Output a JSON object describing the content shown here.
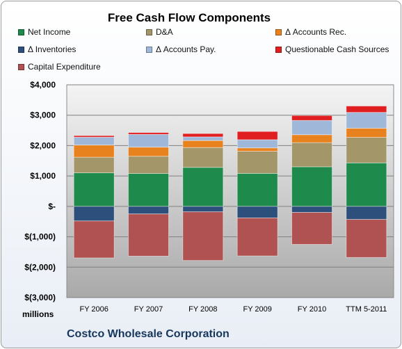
{
  "chart_data": {
    "type": "bar",
    "stacked": true,
    "title": "Free Cash Flow Components",
    "subtitle": "",
    "units_label": "millions",
    "footer": "Costco Wholesale Corporation",
    "categories": [
      "FY 2006",
      "FY 2007",
      "FY 2008",
      "FY 2009",
      "FY 2010",
      "TTM 5-2011"
    ],
    "ylim": [
      -3000,
      4000
    ],
    "y_ticks": [
      {
        "value": 4000,
        "label": "$4,000"
      },
      {
        "value": 3000,
        "label": "$3,000"
      },
      {
        "value": 2000,
        "label": "$2,000"
      },
      {
        "value": 1000,
        "label": "$1,000"
      },
      {
        "value": 0,
        "label": "$-"
      },
      {
        "value": -1000,
        "label": "$(1,000)"
      },
      {
        "value": -2000,
        "label": "$(2,000)"
      },
      {
        "value": -3000,
        "label": "$(3,000)"
      }
    ],
    "grid": true,
    "legend_position": "top",
    "series": [
      {
        "name": "Net Income",
        "color": "#1e8a4c",
        "values": [
          1103,
          1083,
          1283,
          1086,
          1303,
          1432
        ]
      },
      {
        "name": "D&A",
        "color": "#a39668",
        "values": [
          515,
          566,
          653,
          728,
          795,
          840
        ]
      },
      {
        "name": "Δ Accounts Rec.",
        "color": "#e8821e",
        "values": [
          400,
          300,
          230,
          110,
          260,
          300
        ]
      },
      {
        "name": "Δ Inventories",
        "color": "#2d4f7c",
        "values": [
          -480,
          -250,
          -180,
          -380,
          -200,
          -430
        ]
      },
      {
        "name": "Δ Accounts Pay.",
        "color": "#9fb8da",
        "values": [
          260,
          420,
          120,
          270,
          470,
          520
        ]
      },
      {
        "name": "Questionable Cash Sources",
        "color": "#e02020",
        "values": [
          50,
          60,
          110,
          270,
          160,
          210
        ]
      },
      {
        "name": "Capital Expenditure",
        "color": "#b05252",
        "values": [
          -1215,
          -1386,
          -1600,
          -1250,
          -1050,
          -1250
        ]
      }
    ],
    "stack_order": [
      "Net Income",
      "D&A",
      "Δ Accounts Rec.",
      "Δ Accounts Pay.",
      "Questionable Cash Sources",
      "Δ Inventories",
      "Capital Expenditure"
    ]
  }
}
